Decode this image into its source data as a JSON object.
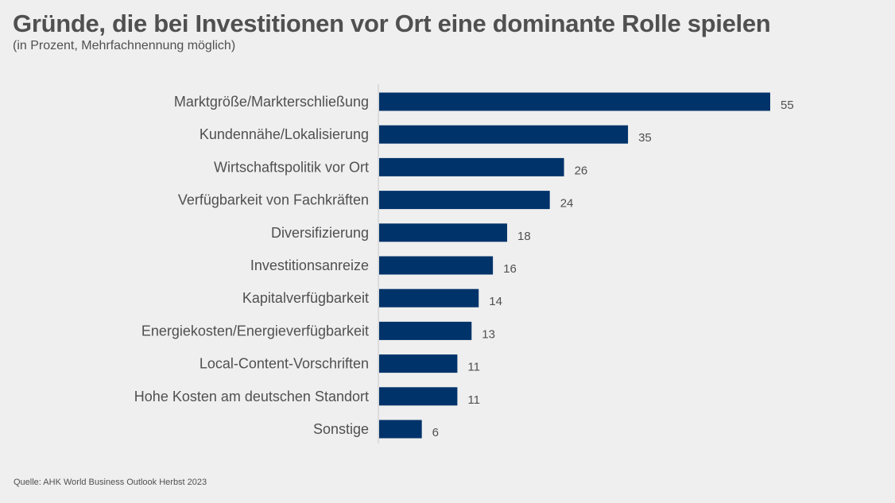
{
  "chart_data": {
    "type": "bar",
    "orientation": "horizontal",
    "title": "Gründe, die bei Investitionen vor Ort eine dominante Rolle spielen",
    "subtitle": "(in Prozent, Mehrfachnennung möglich)",
    "source": "Quelle: AHK World Business Outlook Herbst 2023",
    "xlabel": "",
    "ylabel": "",
    "xlim": [
      0,
      55
    ],
    "grid": false,
    "legend": "none",
    "bar_color": "#00336a",
    "categories": [
      "Marktgröße/Markterschließung",
      "Kundennähe/Lokalisierung",
      "Wirtschaftspolitik vor Ort",
      "Verfügbarkeit von Fachkräften",
      "Diversifizierung",
      "Investitionsanreize",
      "Kapitalverfügbarkeit",
      "Energiekosten/Energieverfügbarkeit",
      "Local-Content-Vorschriften",
      "Hohe Kosten am deutschen Standort",
      "Sonstige"
    ],
    "values": [
      55,
      35,
      26,
      24,
      18,
      16,
      14,
      13,
      11,
      11,
      6
    ]
  }
}
